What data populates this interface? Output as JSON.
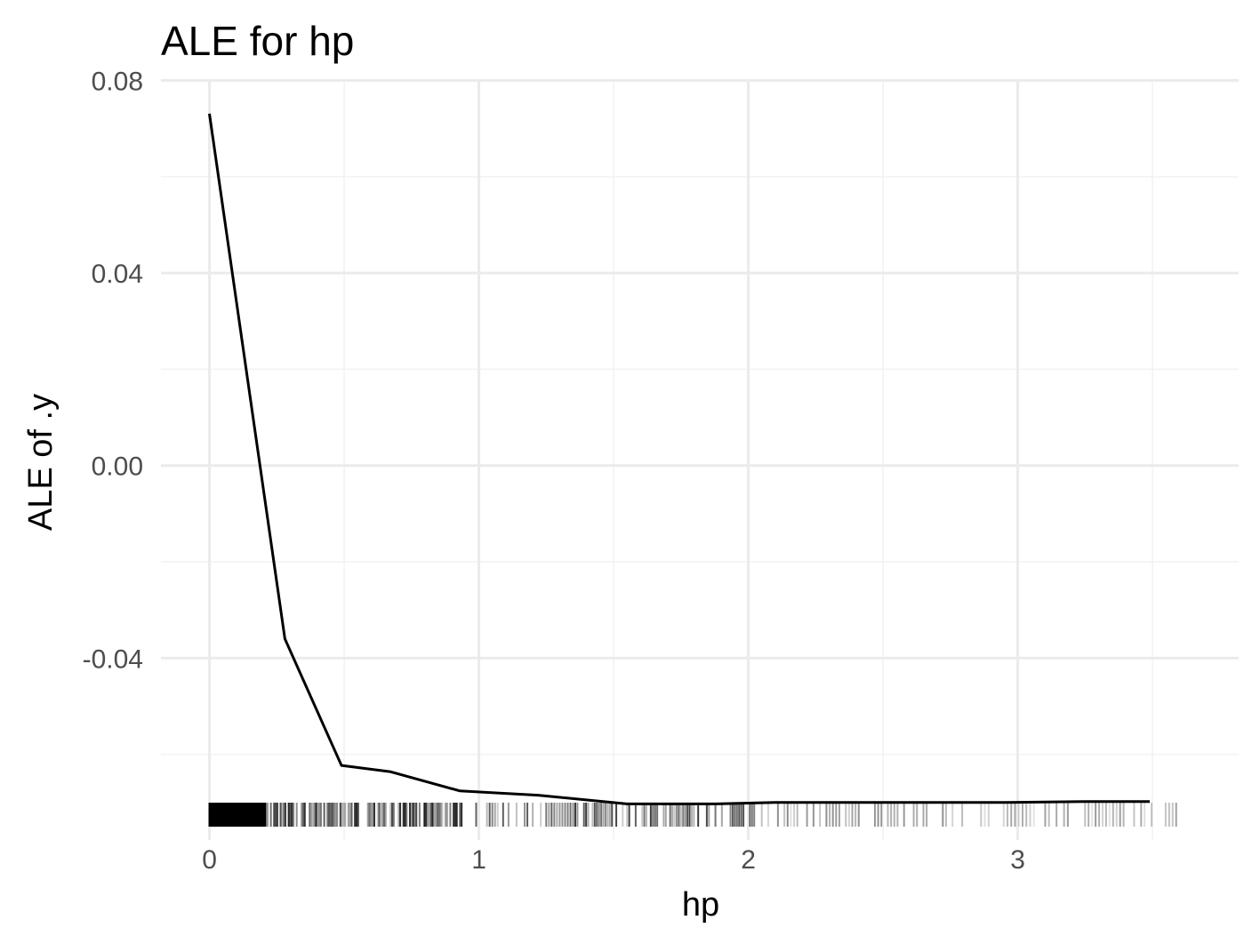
{
  "chart_data": {
    "type": "line",
    "title": "ALE for hp",
    "xlabel": "hp",
    "ylabel": "ALE of .y",
    "xlim": [
      -0.18,
      3.82
    ],
    "ylim": [
      -0.0778,
      0.0801
    ],
    "x_ticks": [
      {
        "value": 0,
        "label": "0"
      },
      {
        "value": 1,
        "label": "1"
      },
      {
        "value": 2,
        "label": "2"
      },
      {
        "value": 3,
        "label": "3"
      }
    ],
    "y_ticks": [
      {
        "value": 0.08,
        "label": "0.08"
      },
      {
        "value": 0.04,
        "label": "0.04"
      },
      {
        "value": 0.0,
        "label": "0.00"
      },
      {
        "value": -0.04,
        "label": "-0.04"
      }
    ],
    "x_minor": [
      0.5,
      1.5,
      2.5,
      3.5
    ],
    "y_minor": [
      0.06,
      0.02,
      -0.02,
      -0.06
    ],
    "grid": true,
    "legend": "none",
    "line_color": "#000000",
    "series": [
      {
        "x": [
          0.0,
          0.28,
          0.49,
          0.67,
          0.93,
          1.22,
          1.55,
          1.88,
          2.1,
          2.45,
          2.95,
          3.25,
          3.49
        ],
        "y": [
          0.0731,
          -0.036,
          -0.0623,
          -0.0636,
          -0.0676,
          -0.0685,
          -0.0703,
          -0.0703,
          -0.07,
          -0.07,
          -0.07,
          -0.0698,
          -0.0698
        ]
      }
    ],
    "rug": {
      "dense_ranges": [
        {
          "from": 0.0,
          "to": 0.21,
          "opacity": 1.0,
          "step": 0.004
        },
        {
          "from": 0.21,
          "to": 0.95,
          "opacity": 0.55,
          "step": 0.006
        },
        {
          "from": 0.95,
          "to": 1.35,
          "opacity": 0.4,
          "step": 0.01
        },
        {
          "from": 1.35,
          "to": 2.05,
          "opacity": 0.5,
          "step": 0.008
        },
        {
          "from": 2.05,
          "to": 2.8,
          "opacity": 0.3,
          "step": 0.012
        },
        {
          "from": 2.85,
          "to": 3.22,
          "opacity": 0.25,
          "step": 0.014
        },
        {
          "from": 3.25,
          "to": 3.6,
          "opacity": 0.25,
          "step": 0.013
        }
      ]
    }
  }
}
